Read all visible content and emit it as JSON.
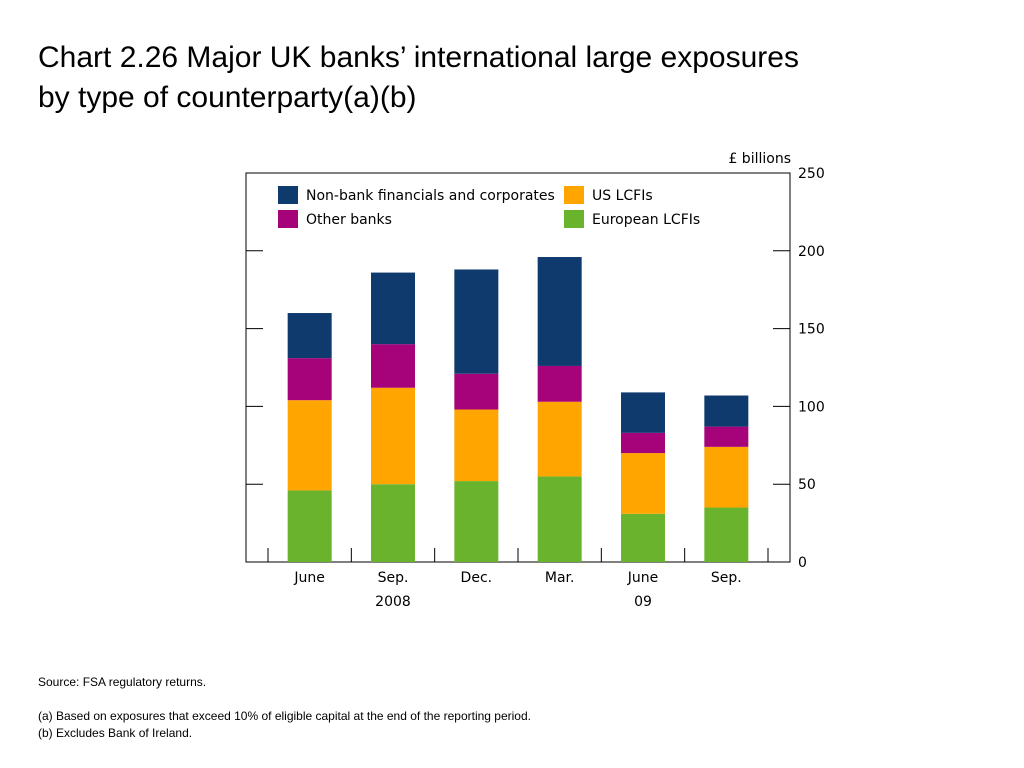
{
  "title": {
    "line1": "Chart 2.26  Major UK banks’ international large exposures",
    "line2": "by type of counterparty(a)(b)"
  },
  "chart_data": {
    "type": "bar",
    "stacked": true,
    "categories": [
      "June",
      "Sep.",
      "Dec.",
      "Mar.",
      "June",
      "Sep."
    ],
    "year_labels": [
      {
        "text": "2008",
        "category_index": 1
      },
      {
        "text": "09",
        "category_index": 4
      }
    ],
    "unit_label": "£ billions",
    "ylim": [
      0,
      250
    ],
    "yticks": [
      0,
      50,
      100,
      150,
      200,
      250
    ],
    "ytick_labels": [
      "0",
      "50",
      "100",
      "150",
      "200",
      "250"
    ],
    "axis_side": "right",
    "legend_placement": "top-left inside",
    "series": [
      {
        "name": "European LCFIs",
        "color": "#6ab42d",
        "values": [
          46,
          50,
          52,
          55,
          31,
          35
        ]
      },
      {
        "name": "US LCFIs",
        "color": "#ffa500",
        "values": [
          58,
          62,
          46,
          48,
          39,
          39
        ]
      },
      {
        "name": "Other banks",
        "color": "#a6027a",
        "values": [
          27,
          28,
          23,
          23,
          13,
          13
        ]
      },
      {
        "name": "Non-bank financials and corporates",
        "color": "#0e3a6e",
        "values": [
          29,
          46,
          67,
          70,
          26,
          20
        ]
      }
    ],
    "legend_order": [
      "Non-bank financials and corporates",
      "US LCFIs",
      "Other banks",
      "European LCFIs"
    ]
  },
  "notes": {
    "source": "Source:  FSA regulatory returns.",
    "note_a": "(a)  Based on exposures that exceed 10% of eligible capital at the end of the reporting period.",
    "note_b": "(b)  Excludes Bank of Ireland."
  }
}
